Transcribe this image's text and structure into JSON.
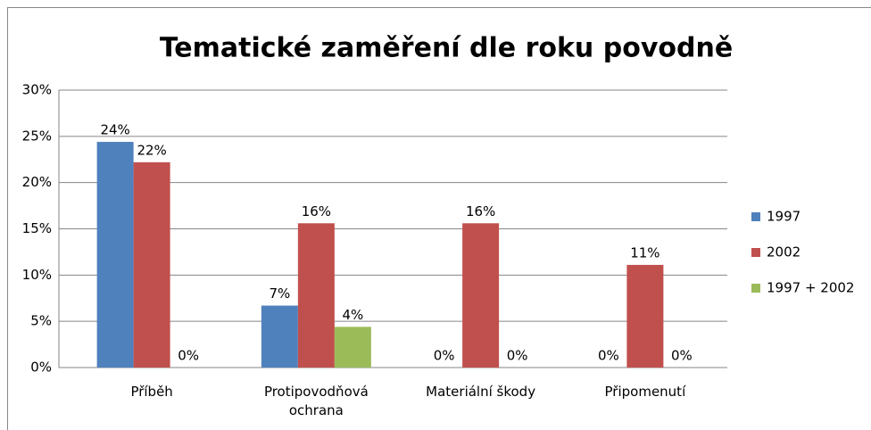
{
  "chart_data": {
    "type": "bar",
    "title": "Tematické zaměření dle roku povodně",
    "categories": [
      "Příběh",
      "Protipovodňová ochrana",
      "Materiální škody",
      "Připomenutí"
    ],
    "series": [
      {
        "name": "1997",
        "color": "#4f81bd",
        "values": [
          24.4,
          6.7,
          0,
          0
        ],
        "value_labels": [
          "24%",
          "7%",
          "0%",
          "0%"
        ]
      },
      {
        "name": "2002",
        "color": "#c0504d",
        "values": [
          22.2,
          15.6,
          15.6,
          11.1
        ],
        "value_labels": [
          "22%",
          "16%",
          "16%",
          "11%"
        ]
      },
      {
        "name": "1997 + 2002",
        "color": "#9bbb59",
        "values": [
          0,
          4.4,
          0,
          0
        ],
        "value_labels": [
          "0%",
          "4%",
          "0%",
          "0%"
        ]
      }
    ],
    "ylim": [
      0,
      30
    ],
    "yticks": [
      {
        "value": 0,
        "label": "0%"
      },
      {
        "value": 5,
        "label": "5%"
      },
      {
        "value": 10,
        "label": "10%"
      },
      {
        "value": 15,
        "label": "15%"
      },
      {
        "value": 20,
        "label": "20%"
      },
      {
        "value": 25,
        "label": "25%"
      },
      {
        "value": 30,
        "label": "30%"
      }
    ],
    "grid": true,
    "legend": "right"
  }
}
